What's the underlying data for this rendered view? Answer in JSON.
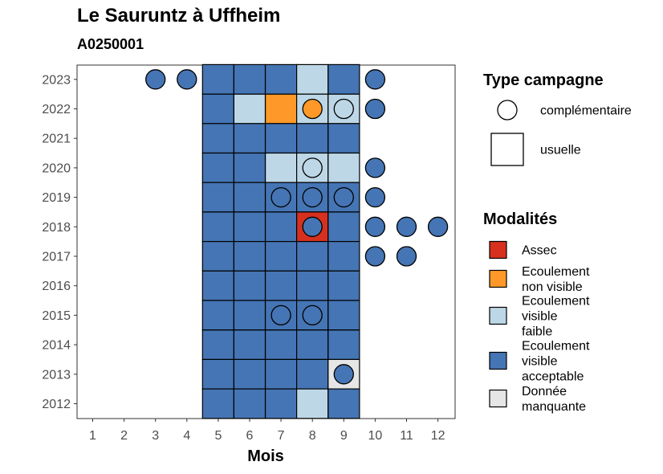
{
  "title": "Le Sauruntz à Uffheim",
  "subtitle": "A0250001",
  "chart_data": {
    "type": "heatmap",
    "title": "Le Sauruntz à Uffheim",
    "subtitle": "A0250001",
    "xlabel": "Mois",
    "ylabel": "",
    "x_ticks": [
      "1",
      "2",
      "3",
      "4",
      "5",
      "6",
      "7",
      "8",
      "9",
      "10",
      "11",
      "12"
    ],
    "y_ticks": [
      "2012",
      "2013",
      "2014",
      "2015",
      "2016",
      "2017",
      "2018",
      "2019",
      "2020",
      "2021",
      "2022",
      "2023"
    ],
    "grid": false,
    "legend_position": "right",
    "colors": {
      "Assec": "#d7301f",
      "Ecoulement non visible": "#fe9929",
      "Ecoulement visible faible": "#bdd7e7",
      "Ecoulement visible acceptable": "#4575b4",
      "Donnée manquante": "#e6e6e6"
    },
    "legend_type": {
      "title": "Type campagne",
      "items": [
        {
          "label": "complémentaire",
          "shape": "circle"
        },
        {
          "label": "usuelle",
          "shape": "square"
        }
      ]
    },
    "legend_modalites": {
      "title": "Modalités",
      "items": [
        {
          "label": "Assec",
          "lines": [
            "Assec"
          ],
          "key": "Assec"
        },
        {
          "label": "Ecoulement non visible",
          "lines": [
            "Ecoulement",
            "non visible"
          ],
          "key": "Ecoulement non visible"
        },
        {
          "label": "Ecoulement visible faible",
          "lines": [
            "Ecoulement",
            "visible",
            "faible"
          ],
          "key": "Ecoulement visible faible"
        },
        {
          "label": "Ecoulement visible acceptable",
          "lines": [
            "Ecoulement",
            "visible",
            "acceptable"
          ],
          "key": "Ecoulement visible acceptable"
        },
        {
          "label": "Donnée manquante",
          "lines": [
            "Donnée",
            "manquante"
          ],
          "key": "Donnée manquante"
        }
      ]
    },
    "usuelle": [
      {
        "year": 2023,
        "month": 5,
        "value": "Ecoulement visible acceptable"
      },
      {
        "year": 2023,
        "month": 6,
        "value": "Ecoulement visible acceptable"
      },
      {
        "year": 2023,
        "month": 7,
        "value": "Ecoulement visible acceptable"
      },
      {
        "year": 2023,
        "month": 8,
        "value": "Ecoulement visible faible"
      },
      {
        "year": 2023,
        "month": 9,
        "value": "Ecoulement visible acceptable"
      },
      {
        "year": 2022,
        "month": 5,
        "value": "Ecoulement visible acceptable"
      },
      {
        "year": 2022,
        "month": 6,
        "value": "Ecoulement visible faible"
      },
      {
        "year": 2022,
        "month": 7,
        "value": "Ecoulement non visible"
      },
      {
        "year": 2022,
        "month": 8,
        "value": "Ecoulement visible faible"
      },
      {
        "year": 2022,
        "month": 9,
        "value": "Ecoulement visible faible"
      },
      {
        "year": 2021,
        "month": 5,
        "value": "Ecoulement visible acceptable"
      },
      {
        "year": 2021,
        "month": 6,
        "value": "Ecoulement visible acceptable"
      },
      {
        "year": 2021,
        "month": 7,
        "value": "Ecoulement visible acceptable"
      },
      {
        "year": 2021,
        "month": 8,
        "value": "Ecoulement visible acceptable"
      },
      {
        "year": 2021,
        "month": 9,
        "value": "Ecoulement visible acceptable"
      },
      {
        "year": 2020,
        "month": 5,
        "value": "Ecoulement visible acceptable"
      },
      {
        "year": 2020,
        "month": 6,
        "value": "Ecoulement visible acceptable"
      },
      {
        "year": 2020,
        "month": 7,
        "value": "Ecoulement visible faible"
      },
      {
        "year": 2020,
        "month": 8,
        "value": "Ecoulement visible faible"
      },
      {
        "year": 2020,
        "month": 9,
        "value": "Ecoulement visible faible"
      },
      {
        "year": 2019,
        "month": 5,
        "value": "Ecoulement visible acceptable"
      },
      {
        "year": 2019,
        "month": 6,
        "value": "Ecoulement visible acceptable"
      },
      {
        "year": 2019,
        "month": 7,
        "value": "Ecoulement visible acceptable"
      },
      {
        "year": 2019,
        "month": 8,
        "value": "Ecoulement visible acceptable"
      },
      {
        "year": 2019,
        "month": 9,
        "value": "Ecoulement visible acceptable"
      },
      {
        "year": 2018,
        "month": 5,
        "value": "Ecoulement visible acceptable"
      },
      {
        "year": 2018,
        "month": 6,
        "value": "Ecoulement visible acceptable"
      },
      {
        "year": 2018,
        "month": 7,
        "value": "Ecoulement visible acceptable"
      },
      {
        "year": 2018,
        "month": 8,
        "value": "Assec"
      },
      {
        "year": 2018,
        "month": 9,
        "value": "Ecoulement visible acceptable"
      },
      {
        "year": 2017,
        "month": 5,
        "value": "Ecoulement visible acceptable"
      },
      {
        "year": 2017,
        "month": 6,
        "value": "Ecoulement visible acceptable"
      },
      {
        "year": 2017,
        "month": 7,
        "value": "Ecoulement visible acceptable"
      },
      {
        "year": 2017,
        "month": 8,
        "value": "Ecoulement visible acceptable"
      },
      {
        "year": 2017,
        "month": 9,
        "value": "Ecoulement visible acceptable"
      },
      {
        "year": 2016,
        "month": 5,
        "value": "Ecoulement visible acceptable"
      },
      {
        "year": 2016,
        "month": 6,
        "value": "Ecoulement visible acceptable"
      },
      {
        "year": 2016,
        "month": 7,
        "value": "Ecoulement visible acceptable"
      },
      {
        "year": 2016,
        "month": 8,
        "value": "Ecoulement visible acceptable"
      },
      {
        "year": 2016,
        "month": 9,
        "value": "Ecoulement visible acceptable"
      },
      {
        "year": 2015,
        "month": 5,
        "value": "Ecoulement visible acceptable"
      },
      {
        "year": 2015,
        "month": 6,
        "value": "Ecoulement visible acceptable"
      },
      {
        "year": 2015,
        "month": 7,
        "value": "Ecoulement visible acceptable"
      },
      {
        "year": 2015,
        "month": 8,
        "value": "Ecoulement visible acceptable"
      },
      {
        "year": 2015,
        "month": 9,
        "value": "Ecoulement visible acceptable"
      },
      {
        "year": 2014,
        "month": 5,
        "value": "Ecoulement visible acceptable"
      },
      {
        "year": 2014,
        "month": 6,
        "value": "Ecoulement visible acceptable"
      },
      {
        "year": 2014,
        "month": 7,
        "value": "Ecoulement visible acceptable"
      },
      {
        "year": 2014,
        "month": 8,
        "value": "Ecoulement visible acceptable"
      },
      {
        "year": 2014,
        "month": 9,
        "value": "Ecoulement visible acceptable"
      },
      {
        "year": 2013,
        "month": 5,
        "value": "Ecoulement visible acceptable"
      },
      {
        "year": 2013,
        "month": 6,
        "value": "Ecoulement visible acceptable"
      },
      {
        "year": 2013,
        "month": 7,
        "value": "Ecoulement visible acceptable"
      },
      {
        "year": 2013,
        "month": 8,
        "value": "Ecoulement visible acceptable"
      },
      {
        "year": 2013,
        "month": 9,
        "value": "Donnée manquante"
      },
      {
        "year": 2012,
        "month": 5,
        "value": "Ecoulement visible acceptable"
      },
      {
        "year": 2012,
        "month": 6,
        "value": "Ecoulement visible acceptable"
      },
      {
        "year": 2012,
        "month": 7,
        "value": "Ecoulement visible acceptable"
      },
      {
        "year": 2012,
        "month": 8,
        "value": "Ecoulement visible faible"
      },
      {
        "year": 2012,
        "month": 9,
        "value": "Ecoulement visible acceptable"
      }
    ],
    "complementaire": [
      {
        "year": 2023,
        "month": 3,
        "value": "Ecoulement visible acceptable"
      },
      {
        "year": 2023,
        "month": 4,
        "value": "Ecoulement visible acceptable"
      },
      {
        "year": 2023,
        "month": 10,
        "value": "Ecoulement visible acceptable"
      },
      {
        "year": 2022,
        "month": 8,
        "value": "Ecoulement non visible"
      },
      {
        "year": 2022,
        "month": 9,
        "value": "Ecoulement visible faible"
      },
      {
        "year": 2022,
        "month": 10,
        "value": "Ecoulement visible acceptable"
      },
      {
        "year": 2020,
        "month": 8,
        "value": "Ecoulement visible faible"
      },
      {
        "year": 2020,
        "month": 10,
        "value": "Ecoulement visible acceptable"
      },
      {
        "year": 2019,
        "month": 7,
        "value": "Ecoulement visible acceptable"
      },
      {
        "year": 2019,
        "month": 8,
        "value": "Ecoulement visible acceptable"
      },
      {
        "year": 2019,
        "month": 9,
        "value": "Ecoulement visible acceptable"
      },
      {
        "year": 2019,
        "month": 10,
        "value": "Ecoulement visible acceptable"
      },
      {
        "year": 2018,
        "month": 8,
        "value": "Ecoulement visible acceptable"
      },
      {
        "year": 2018,
        "month": 10,
        "value": "Ecoulement visible acceptable"
      },
      {
        "year": 2018,
        "month": 11,
        "value": "Ecoulement visible acceptable"
      },
      {
        "year": 2018,
        "month": 12,
        "value": "Ecoulement visible acceptable"
      },
      {
        "year": 2017,
        "month": 10,
        "value": "Ecoulement visible acceptable"
      },
      {
        "year": 2017,
        "month": 11,
        "value": "Ecoulement visible acceptable"
      },
      {
        "year": 2015,
        "month": 7,
        "value": "Ecoulement visible acceptable"
      },
      {
        "year": 2015,
        "month": 8,
        "value": "Ecoulement visible acceptable"
      },
      {
        "year": 2013,
        "month": 9,
        "value": "Ecoulement visible acceptable"
      }
    ]
  }
}
